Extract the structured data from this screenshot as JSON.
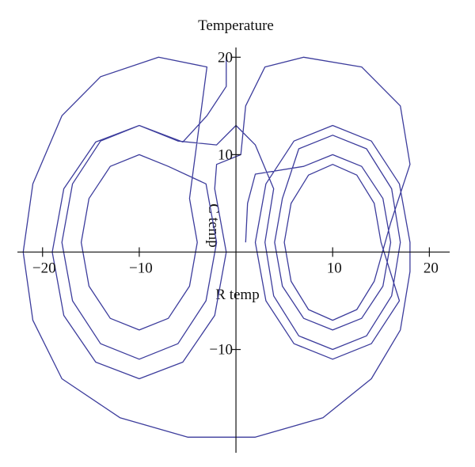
{
  "chart_data": {
    "type": "line",
    "title": "Temperature",
    "xlabel": "R temp",
    "ylabel": "C temp",
    "color": "#3c3c9c",
    "xlim": [
      -22.6,
      22.1
    ],
    "ylim": [
      -20.6,
      21
    ],
    "xticks": [
      {
        "value": -20,
        "label": "−20"
      },
      {
        "value": -10,
        "label": "−10"
      },
      10,
      20
    ],
    "yticks": [
      {
        "value": -10,
        "label": "−10"
      },
      10,
      20
    ],
    "x": [
      1,
      1.2,
      2,
      7,
      10,
      13,
      15.2,
      16,
      15.2,
      13,
      10,
      7,
      4.8,
      4,
      4.8,
      6.5,
      10,
      13.5,
      16.1,
      17,
      16.1,
      13.5,
      10,
      6.5,
      3.9,
      3,
      3.9,
      2,
      0,
      -2,
      -6,
      -10,
      -14,
      -16.9,
      -18,
      -16.9,
      -14,
      -10,
      -6,
      -3.1,
      -2,
      -3.1,
      -7,
      -10,
      -13,
      -15.2,
      -16,
      -15.2,
      -13,
      -10,
      -7,
      -4.8,
      -4,
      -4.8,
      -3,
      -8,
      -14,
      -18,
      -21,
      -22,
      -21,
      -18,
      -12,
      -5,
      2,
      9,
      14,
      17,
      18,
      18,
      16.9,
      14,
      10,
      6,
      3.1,
      2,
      3.1,
      6,
      10,
      14,
      16.9,
      15,
      14.3,
      12.5,
      10,
      7.5,
      5.7,
      5,
      5.7,
      7.5,
      10,
      12.5,
      14.3,
      16,
      18,
      17,
      13,
      7,
      3,
      1,
      0.5,
      -2,
      -2.2,
      -1,
      -2.2,
      -5.5,
      -10,
      -14.5,
      -17.8,
      -19,
      -17.8,
      -14.5,
      -10,
      -5.5,
      -3,
      -1,
      -1
    ],
    "y": [
      1,
      5,
      8,
      8.8,
      10,
      8.8,
      5.5,
      1,
      -3.5,
      -6.8,
      -8,
      -6.8,
      -3.5,
      1,
      5.5,
      10.6,
      12,
      10.6,
      6.5,
      1,
      -4.5,
      -8.6,
      -10,
      -8.6,
      -4.5,
      1,
      6.5,
      11,
      13,
      11,
      11.4,
      13,
      11.4,
      7,
      1,
      -5,
      -9.4,
      -11,
      -9.4,
      -5,
      1,
      7,
      8.8,
      10,
      8.8,
      5.5,
      1,
      -3.5,
      -6.8,
      -8,
      -6.8,
      -3.5,
      1,
      5.5,
      19,
      20,
      18,
      14,
      7,
      0,
      -7,
      -13,
      -17,
      -19,
      -19,
      -17,
      -13,
      -8,
      -2,
      1,
      7,
      11.4,
      13,
      11.4,
      7,
      1,
      -5,
      -9.4,
      -11,
      -9.4,
      -5,
      1,
      5,
      7.9,
      9,
      7.9,
      5,
      1,
      -3,
      -5.9,
      -7,
      -5.9,
      -3,
      3,
      9,
      15,
      19,
      20,
      19,
      15,
      10,
      9,
      6.5,
      0,
      -6.5,
      -11.3,
      -13,
      -11.3,
      -6.5,
      0,
      6.5,
      11.3,
      13,
      11.3,
      14,
      17,
      20
    ]
  }
}
